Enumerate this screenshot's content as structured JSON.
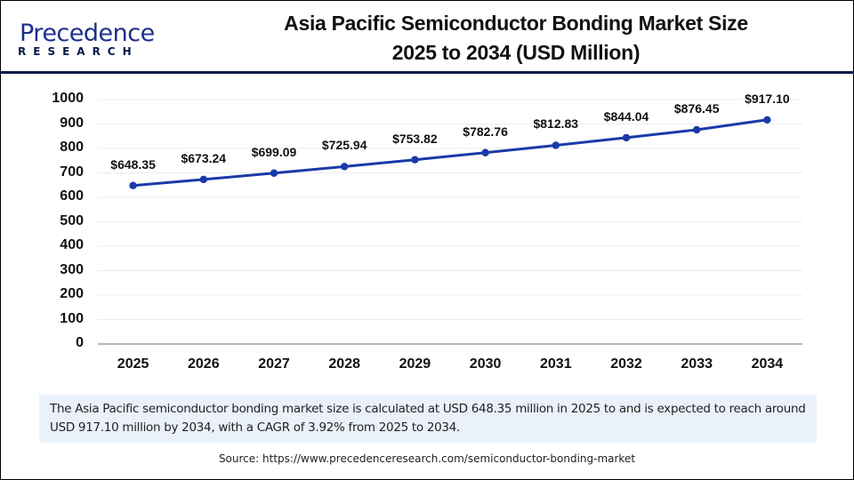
{
  "header": {
    "logo_word": "Precedence",
    "logo_sub": "RESEARCH",
    "title_line1": "Asia Pacific Semiconductor Bonding Market Size",
    "title_line2": "2025 to 2034 (USD Million)"
  },
  "colors": {
    "line": "#1a3aa8",
    "brand_dark": "#0b1a4a",
    "note_bg": "#eaf1fb",
    "grid": "#ececec",
    "axis": "#b5b5b5"
  },
  "chart_data": {
    "type": "line",
    "title": "Asia Pacific Semiconductor Bonding Market Size 2025 to 2034 (USD Million)",
    "xlabel": "",
    "ylabel": "",
    "categories": [
      "2025",
      "2026",
      "2027",
      "2028",
      "2029",
      "2030",
      "2031",
      "2032",
      "2033",
      "2034"
    ],
    "series": [
      {
        "name": "Market Size (USD Million)",
        "values": [
          648.35,
          673.24,
          699.09,
          725.94,
          753.82,
          782.76,
          812.83,
          844.04,
          876.45,
          917.1
        ]
      }
    ],
    "data_labels": [
      "$648.35",
      "$673.24",
      "$699.09",
      "$725.94",
      "$753.82",
      "$782.76",
      "$812.83",
      "$844.04",
      "$876.45",
      "$917.10"
    ],
    "y_ticks": [
      "0",
      "100",
      "200",
      "300",
      "400",
      "500",
      "600",
      "700",
      "800",
      "900",
      "1000"
    ],
    "ylim": [
      0,
      1000
    ],
    "grid": true,
    "legend": "none"
  },
  "note": {
    "text": "The Asia Pacific semiconductor bonding market size is calculated at USD 648.35 million in 2025 to and is expected to reach around USD 917.10 million by 2034, with a CAGR of 3.92% from 2025 to 2034."
  },
  "source": {
    "text": "Source: https://www.precedenceresearch.com/semiconductor-bonding-market"
  }
}
